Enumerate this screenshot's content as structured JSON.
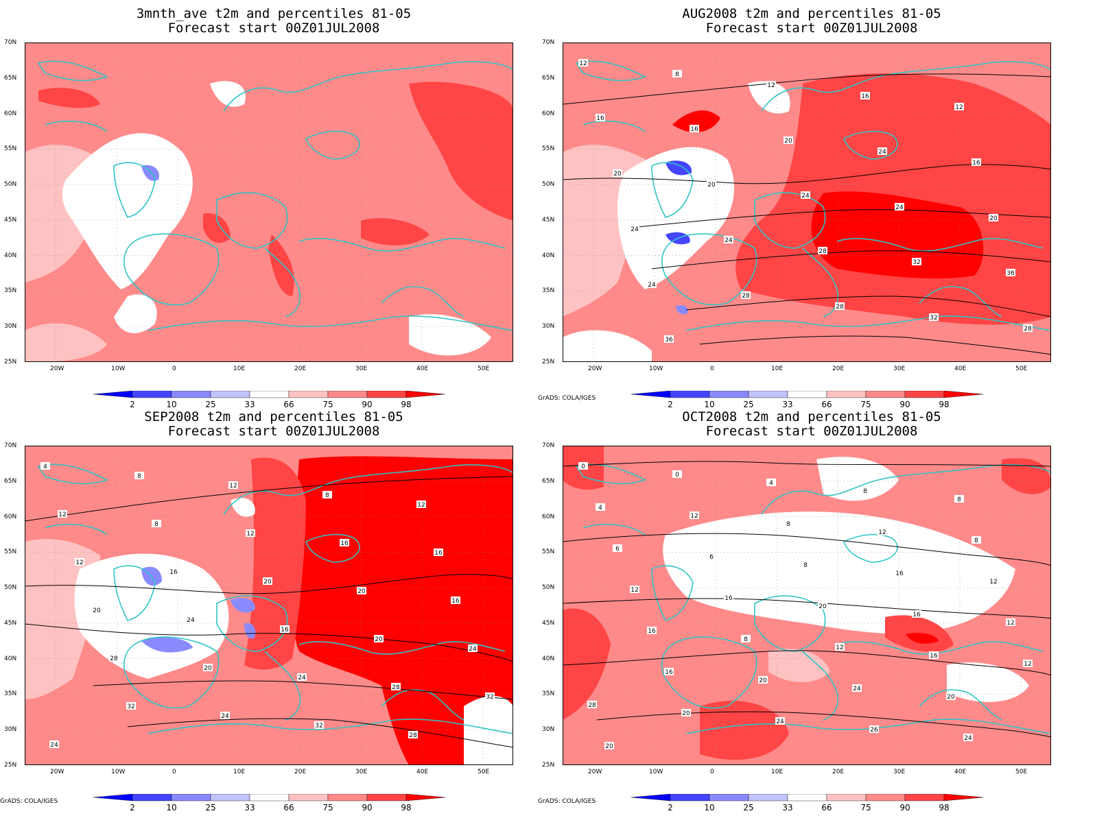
{
  "panels": [
    {
      "title": "3mnth_ave t2m and percentiles 81-05",
      "subtitle": "Forecast start 00Z01JUL2008",
      "show_credit": false,
      "contours": false
    },
    {
      "title": "AUG2008 t2m and percentiles 81-05",
      "subtitle": "Forecast start 00Z01JUL2008",
      "show_credit": true,
      "contours": true
    },
    {
      "title": "SEP2008 t2m and percentiles 81-05",
      "subtitle": "Forecast start 00Z01JUL2008",
      "show_credit": true,
      "contours": true
    },
    {
      "title": "OCT2008 t2m and percentiles 81-05",
      "subtitle": "Forecast start 00Z01JUL2008",
      "show_credit": true,
      "contours": true
    }
  ],
  "credit": "GrADS: COLA/IGES",
  "lat_labels": [
    "70N",
    "65N",
    "60N",
    "55N",
    "50N",
    "45N",
    "40N",
    "35N",
    "30N",
    "25N"
  ],
  "lon_labels": [
    "20W",
    "10W",
    "0",
    "10E",
    "20E",
    "30E",
    "40E",
    "50E"
  ],
  "colorbar": {
    "labels": [
      "2",
      "10",
      "25",
      "33",
      "66",
      "75",
      "90",
      "98"
    ],
    "colors": [
      "#0000ff",
      "#4545ff",
      "#8a8aff",
      "#c2c2ff",
      "#ffffff",
      "#ffc2c2",
      "#ff8a8a",
      "#ff4545",
      "#ff0000"
    ]
  },
  "contour_labels": {
    "p1": [
      "12",
      "8",
      "12",
      "16",
      "12",
      "16",
      "16",
      "20",
      "24",
      "16",
      "20",
      "20",
      "24",
      "24",
      "20",
      "24",
      "24",
      "28",
      "32",
      "36",
      "24",
      "28",
      "28",
      "32",
      "28",
      "36"
    ],
    "p2": [
      "4",
      "8",
      "12",
      "8",
      "12",
      "12",
      "8",
      "12",
      "16",
      "16",
      "12",
      "16",
      "20",
      "20",
      "16",
      "20",
      "24",
      "16",
      "20",
      "24",
      "28",
      "20",
      "24",
      "28",
      "32",
      "32",
      "24",
      "32",
      "28",
      "24"
    ],
    "p3": [
      "0",
      "0",
      "4",
      "8",
      "8",
      "4",
      "12",
      "8",
      "12",
      "8",
      "6",
      "6",
      "8",
      "16",
      "12",
      "12",
      "16",
      "20",
      "16",
      "12",
      "16",
      "8",
      "12",
      "16",
      "12",
      "16",
      "20",
      "24",
      "20",
      "28",
      "20",
      "24",
      "26",
      "24",
      "20"
    ]
  }
}
